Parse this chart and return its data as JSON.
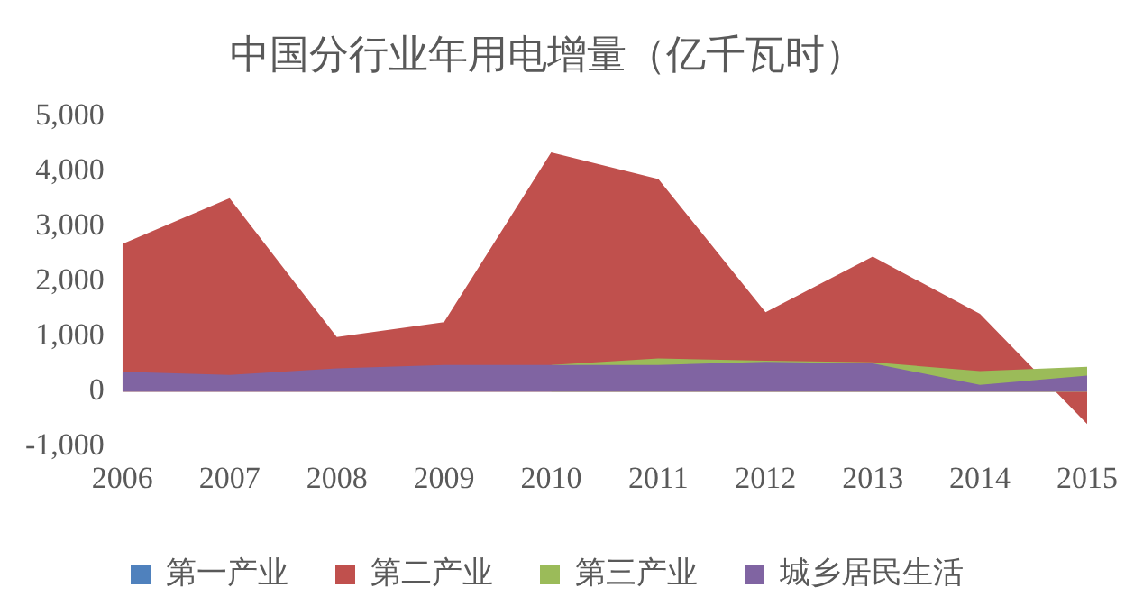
{
  "chart_data": {
    "type": "area",
    "title": "中国分行业年用电增量（亿千瓦时）",
    "categories": [
      "2006",
      "2007",
      "2008",
      "2009",
      "2010",
      "2011",
      "2012",
      "2013",
      "2014",
      "2015"
    ],
    "series": [
      {
        "name": "第一产业",
        "color": "#4f81bd",
        "values": [
          null,
          null,
          null,
          null,
          null,
          null,
          null,
          null,
          null,
          null
        ]
      },
      {
        "name": "第二产业",
        "color": "#c0504d",
        "values": [
          2680,
          3510,
          990,
          1260,
          4340,
          3860,
          1440,
          2450,
          1410,
          -590
        ]
      },
      {
        "name": "第三产业",
        "color": "#9bbb59",
        "values": [
          null,
          null,
          null,
          null,
          480,
          600,
          560,
          530,
          370,
          450
        ]
      },
      {
        "name": "城乡居民生活",
        "color": "#8064a2",
        "values": [
          360,
          300,
          420,
          480,
          480,
          480,
          540,
          510,
          120,
          290
        ]
      }
    ],
    "ylim": [
      -1000,
      5000
    ],
    "yticks": [
      {
        "value": -1000,
        "label": "-1,000"
      },
      0,
      {
        "value": 1000,
        "label": "1,000"
      },
      {
        "value": 2000,
        "label": "2,000"
      },
      {
        "value": 3000,
        "label": "3,000"
      },
      {
        "value": 4000,
        "label": "4,000"
      },
      {
        "value": 5000,
        "label": "5,000"
      }
    ],
    "grid": false,
    "legend": "bottom"
  }
}
